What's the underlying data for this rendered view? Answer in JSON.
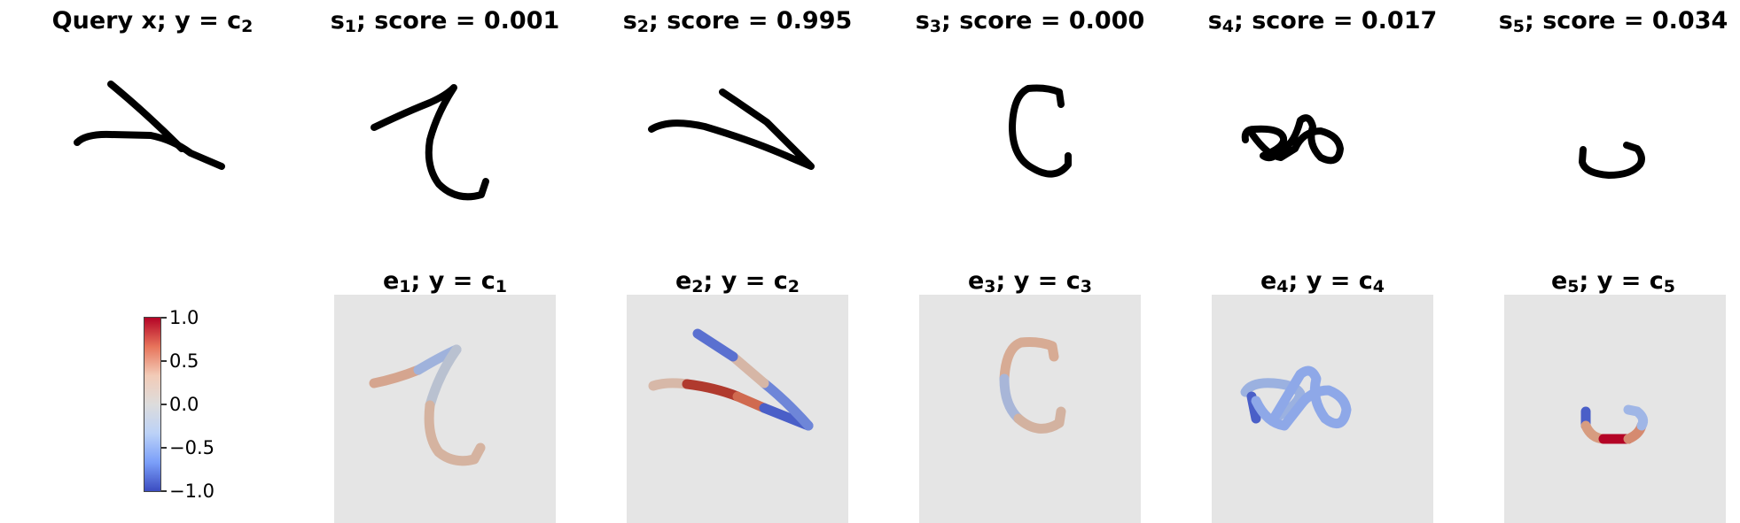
{
  "titles": {
    "query": {
      "text": "Query x; y = c",
      "sub": "2"
    },
    "samples": [
      {
        "pre": "s",
        "sub": "1",
        "post": "; score = 0.001"
      },
      {
        "pre": "s",
        "sub": "2",
        "post": "; score = 0.995"
      },
      {
        "pre": "s",
        "sub": "3",
        "post": "; score = 0.000"
      },
      {
        "pre": "s",
        "sub": "4",
        "post": "; score = 0.017"
      },
      {
        "pre": "s",
        "sub": "5",
        "post": "; score = 0.034"
      }
    ],
    "explanations": [
      {
        "pre": "e",
        "sub1": "1",
        "mid": "; y = c",
        "sub2": "1"
      },
      {
        "pre": "e",
        "sub1": "2",
        "mid": "; y = c",
        "sub2": "2"
      },
      {
        "pre": "e",
        "sub1": "3",
        "mid": "; y = c",
        "sub2": "3"
      },
      {
        "pre": "e",
        "sub1": "4",
        "mid": "; y = c",
        "sub2": "4"
      },
      {
        "pre": "e",
        "sub1": "5",
        "mid": "; y = c",
        "sub2": "5"
      }
    ]
  },
  "colorbar": {
    "ticks": [
      "1.0",
      "0.5",
      "0.0",
      "−0.5",
      "−1.0"
    ],
    "colormap": "coolwarm",
    "range": [
      -1.0,
      1.0
    ]
  },
  "colors": {
    "stroke": "#000000",
    "panel_bg": "#e5e5e5",
    "warm": "#b40426",
    "cool": "#3b4cc0"
  }
}
